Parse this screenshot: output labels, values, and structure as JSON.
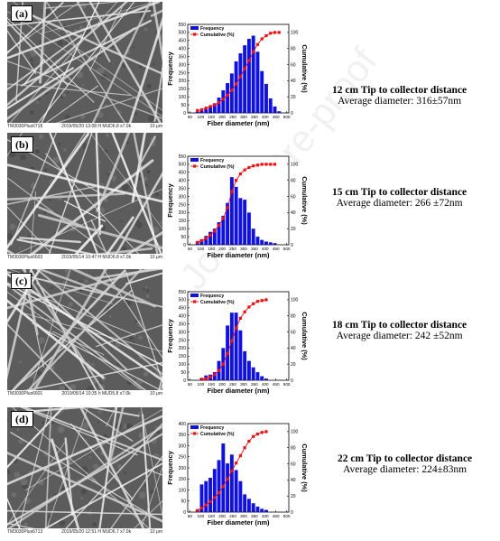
{
  "watermark": "Journal Pre-proof",
  "panels": [
    {
      "label": "(a)",
      "sem": {
        "id": "TM3030Plus6718",
        "date": "2019/05/20",
        "time": "13:08",
        "mode": "H MUD6.8",
        "mag": "x7.0k",
        "scale": "10 μm"
      },
      "title": "12 cm Tip to collector distance",
      "avg": "Average diameter: 316±57nm",
      "chart_data": {
        "type": "bar",
        "xlabel": "Fiber diameter (nm)",
        "ylabel": "Frequency",
        "y2label": "Cumulative (%)",
        "legend": [
          "Frequency",
          "Cumulative (%)"
        ],
        "legend_position": "top-left",
        "x_ticks": [
          "50",
          "100",
          "150",
          "200",
          "250",
          "300",
          "350",
          "400",
          "450",
          "500"
        ],
        "x_range": [
          40,
          510
        ],
        "ylim": [
          0,
          550
        ],
        "y_ticks": [
          0,
          50,
          100,
          150,
          200,
          250,
          300,
          350,
          400,
          450,
          500,
          550
        ],
        "y2lim": [
          0,
          110
        ],
        "y2_ticks": [
          0,
          20,
          40,
          60,
          80,
          100
        ],
        "bin_centers": [
          85,
          105,
          125,
          145,
          165,
          185,
          205,
          225,
          245,
          265,
          285,
          305,
          325,
          345,
          365,
          385,
          405,
          425,
          445,
          465
        ],
        "frequency": [
          8,
          15,
          25,
          40,
          60,
          95,
          140,
          185,
          245,
          320,
          370,
          420,
          460,
          480,
          380,
          260,
          180,
          90,
          40,
          10
        ],
        "cumulative": [
          3,
          4,
          6,
          8,
          10,
          13,
          17,
          22,
          28,
          36,
          45,
          55,
          65,
          76,
          85,
          92,
          96,
          99,
          100,
          100
        ]
      }
    },
    {
      "label": "(b)",
      "sem": {
        "id": "TM3030Plus6603",
        "date": "2019/05/14",
        "time": "10:47",
        "mode": "H MUD6.8",
        "mag": "x7.0k",
        "scale": "10 μm"
      },
      "title": "15 cm Tip to collector distance",
      "avg": "Average diameter: 266 ±72nm",
      "chart_data": {
        "type": "bar",
        "xlabel": "Fiber diameter (nm)",
        "ylabel": "Frequency",
        "y2label": "Cumulative (%)",
        "legend": [
          "Frequency",
          "Cumulative (%)"
        ],
        "legend_position": "top-left",
        "x_ticks": [
          "50",
          "100",
          "150",
          "200",
          "250",
          "300",
          "350",
          "400",
          "450",
          "500"
        ],
        "x_range": [
          40,
          510
        ],
        "ylim": [
          0,
          550
        ],
        "y_ticks": [
          0,
          50,
          100,
          150,
          200,
          250,
          300,
          350,
          400,
          450,
          500,
          550
        ],
        "y2lim": [
          0,
          110
        ],
        "y2_ticks": [
          0,
          20,
          40,
          60,
          80,
          100
        ],
        "bin_centers": [
          85,
          105,
          125,
          145,
          165,
          185,
          205,
          225,
          245,
          265,
          285,
          305,
          325,
          345,
          365,
          385,
          405,
          425,
          445
        ],
        "frequency": [
          20,
          35,
          55,
          80,
          100,
          140,
          180,
          260,
          420,
          360,
          290,
          280,
          200,
          100,
          50,
          30,
          20,
          15,
          10
        ],
        "cumulative": [
          3,
          5,
          8,
          12,
          17,
          24,
          33,
          46,
          66,
          80,
          88,
          93,
          96,
          98,
          99,
          100,
          100,
          100,
          100
        ]
      }
    },
    {
      "label": "(c)",
      "sem": {
        "id": "TM3030Plus6601",
        "date": "2019/05/14",
        "time": "10:35",
        "mode": "h MUD5.8",
        "mag": "x7.0k",
        "scale": "10 μm"
      },
      "title": "18 cm Tip to collector distance",
      "avg": "Average diameter: 242 ±52nm",
      "chart_data": {
        "type": "bar",
        "xlabel": "Fiber diameter (nm)",
        "ylabel": "Frequency",
        "y2label": "Cumulative (%)",
        "legend": [
          "Frequency",
          "Cumulative (%)"
        ],
        "legend_position": "top-left",
        "x_ticks": [
          "50",
          "100",
          "150",
          "200",
          "250",
          "300",
          "350",
          "400",
          "450",
          "500"
        ],
        "x_range": [
          40,
          510
        ],
        "ylim": [
          0,
          550
        ],
        "y_ticks": [
          0,
          50,
          100,
          150,
          200,
          250,
          300,
          350,
          400,
          450,
          500,
          550
        ],
        "y2lim": [
          0,
          110
        ],
        "y2_ticks": [
          0,
          20,
          40,
          60,
          80,
          100
        ],
        "bin_centers": [
          105,
          125,
          145,
          165,
          185,
          205,
          225,
          245,
          265,
          285,
          305,
          325,
          345,
          365,
          385,
          405
        ],
        "frequency": [
          15,
          30,
          35,
          50,
          120,
          200,
          340,
          420,
          420,
          310,
          180,
          120,
          80,
          50,
          25,
          10
        ],
        "cumulative": [
          1,
          2,
          4,
          7,
          12,
          20,
          33,
          49,
          65,
          77,
          85,
          91,
          95,
          98,
          99,
          100
        ]
      }
    },
    {
      "label": "(d)",
      "sem": {
        "id": "TM3030Plus6713",
        "date": "2019/05/20",
        "time": "12:51",
        "mode": "H MUD6.7",
        "mag": "x7.0k",
        "scale": "10 μm"
      },
      "title": "22 cm Tip to collector distance",
      "avg": "Average diameter: 224±83nm",
      "chart_data": {
        "type": "bar",
        "xlabel": "Fiber diameter (nm)",
        "ylabel": "Frequency",
        "y2label": "Cumulative (%)",
        "legend": [
          "Frequency",
          "Cumulative (%)"
        ],
        "legend_position": "top-left",
        "x_ticks": [
          "50",
          "100",
          "150",
          "200",
          "250",
          "300",
          "350",
          "400",
          "450",
          "500"
        ],
        "x_range": [
          40,
          510
        ],
        "ylim": [
          0,
          400
        ],
        "y_ticks": [
          0,
          50,
          100,
          150,
          200,
          250,
          300,
          350,
          400
        ],
        "y2lim": [
          0,
          110
        ],
        "y2_ticks": [
          0,
          20,
          40,
          60,
          80,
          100
        ],
        "bin_centers": [
          85,
          105,
          125,
          145,
          165,
          185,
          205,
          225,
          245,
          265,
          285,
          305,
          325,
          345,
          365,
          385,
          405
        ],
        "frequency": [
          10,
          125,
          140,
          155,
          195,
          235,
          310,
          220,
          260,
          190,
          140,
          80,
          60,
          40,
          25,
          15,
          10
        ],
        "cumulative": [
          2,
          5,
          9,
          13,
          18,
          24,
          32,
          41,
          51,
          61,
          70,
          80,
          88,
          94,
          97,
          99,
          100
        ]
      }
    }
  ],
  "colors": {
    "bar": "#1010e0",
    "line": "#ee1111"
  }
}
